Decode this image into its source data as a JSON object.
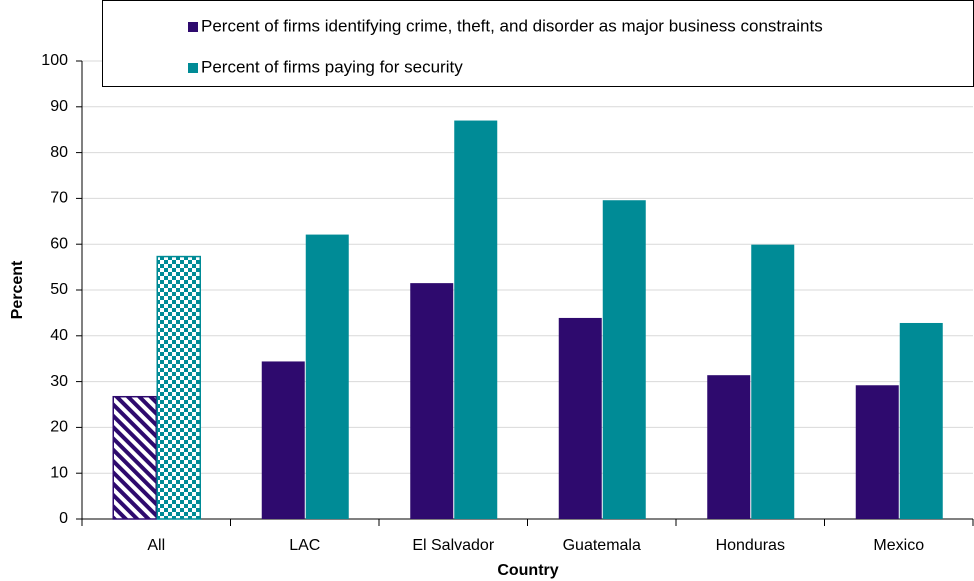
{
  "chart_data": {
    "type": "bar",
    "categories": [
      "All",
      "LAC",
      "El Salvador",
      "Guatemala",
      "Honduras",
      "Mexico"
    ],
    "series": [
      {
        "name": "Percent of firms identifying crime, theft, and disorder as major business constraints",
        "color": "#2e0a6e",
        "values": [
          26.7,
          34.4,
          51.5,
          43.9,
          31.4,
          29.2
        ],
        "fill_patterns": [
          "hatch",
          "solid",
          "solid",
          "solid",
          "solid",
          "solid"
        ]
      },
      {
        "name": "Percent of firms paying for security",
        "color": "#008b96",
        "values": [
          57.3,
          62.1,
          87.0,
          69.6,
          59.9,
          42.8
        ],
        "fill_patterns": [
          "checker",
          "solid",
          "solid",
          "solid",
          "solid",
          "solid"
        ]
      }
    ],
    "xlabel": "Country",
    "ylabel": "Percent",
    "ylim": [
      0,
      100
    ],
    "yticks": [
      0,
      10,
      20,
      30,
      40,
      50,
      60,
      70,
      80,
      90,
      100
    ],
    "grid": true,
    "legend": "top"
  }
}
